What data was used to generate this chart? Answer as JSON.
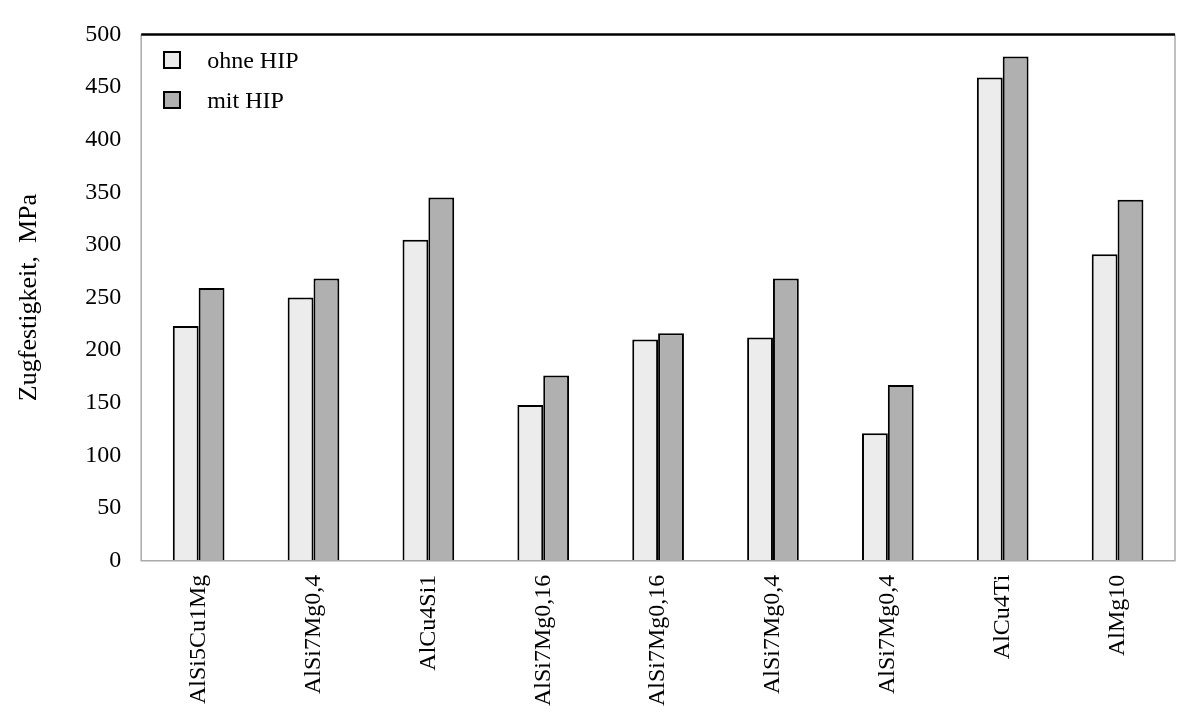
{
  "chart_data": {
    "type": "bar",
    "ylabel": "Zugfestigkeit,  MPa",
    "categories": [
      "AlSi5Cu1Mg",
      "AlSi7Mg0,4",
      "AlCu4Si1",
      "AlSi7Mg0,16",
      "AlSi7Mg0,16",
      "AlSi7Mg0,4",
      "AlSi7Mg0,4",
      "AlCu4Ti",
      "AlMg10"
    ],
    "series": [
      {
        "name": "ohne HIP",
        "color": "#ececec",
        "values": [
          223,
          250,
          305,
          148,
          210,
          212,
          121,
          459,
          291
        ]
      },
      {
        "name": "mit HIP",
        "color": "#b0b0b0",
        "values": [
          259,
          268,
          345,
          176,
          216,
          268,
          167,
          479,
          343
        ]
      }
    ],
    "ylim": [
      0,
      500
    ],
    "yticks": [
      0,
      50,
      100,
      150,
      200,
      250,
      300,
      350,
      400,
      450,
      500
    ],
    "grid": false,
    "legend": "top left"
  }
}
